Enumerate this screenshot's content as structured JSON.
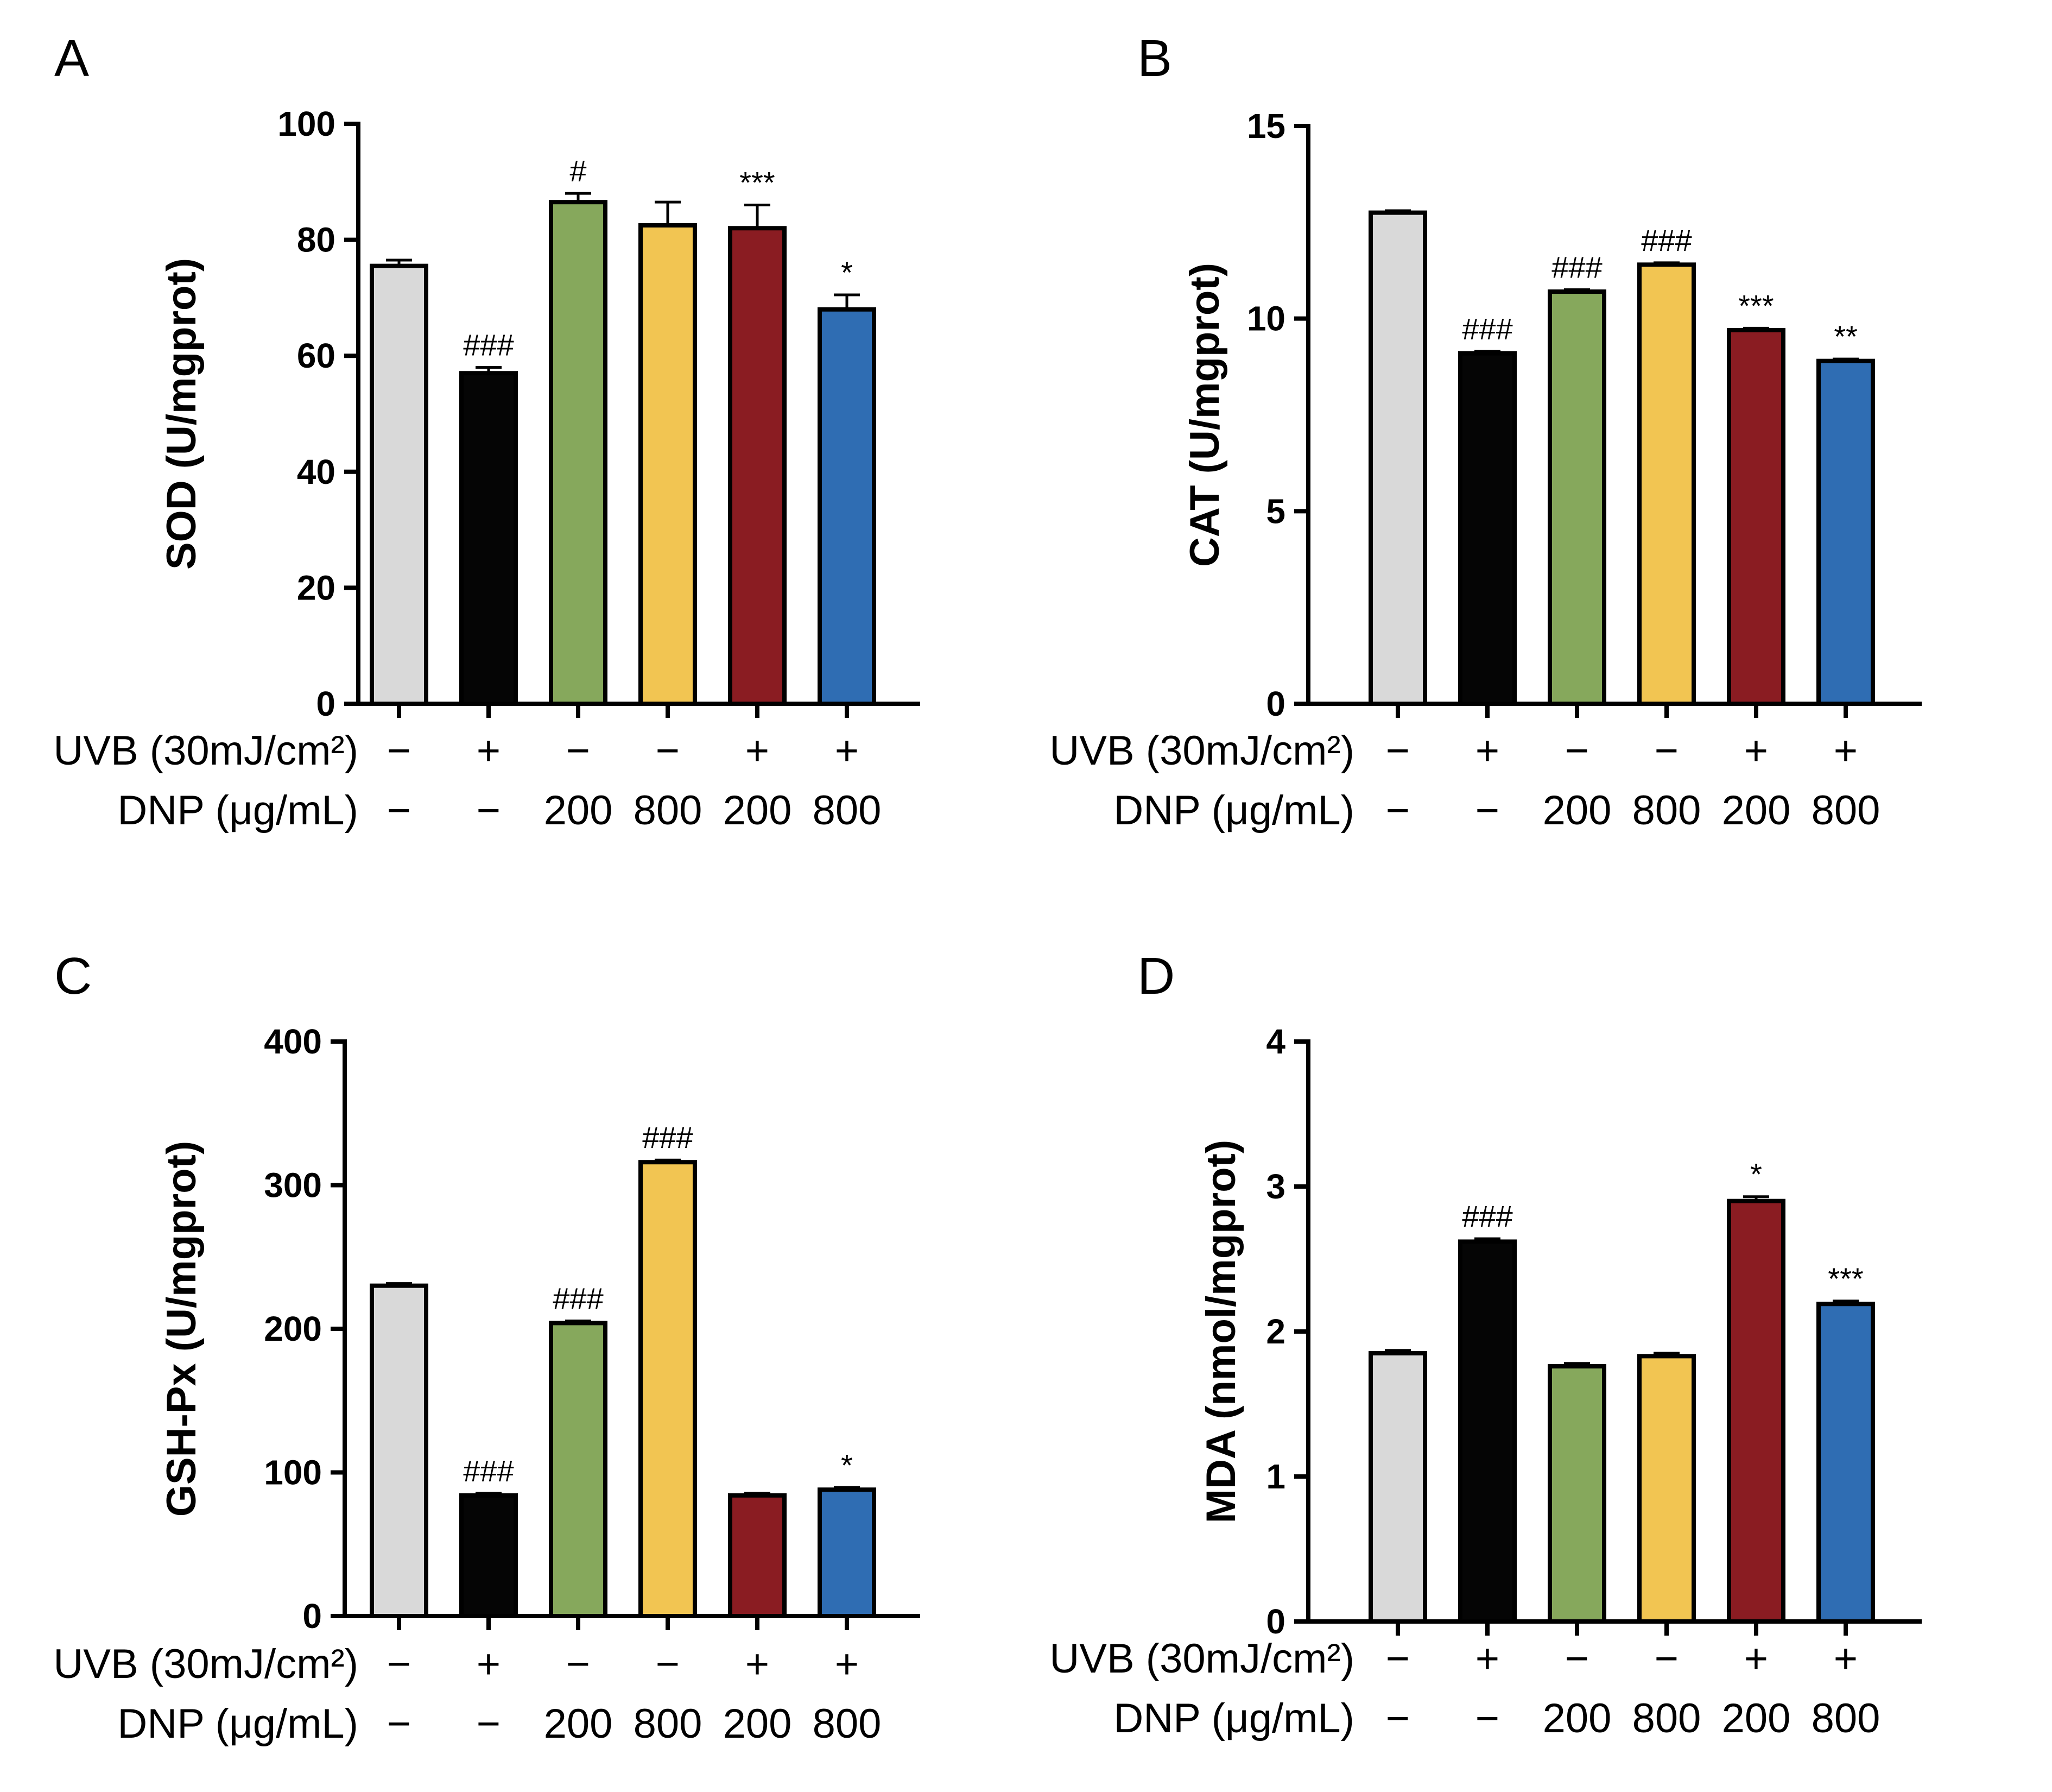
{
  "figure": {
    "row_labels": {
      "uvb": "UVB (30mJ/cm²)",
      "dnp": "DNP (μg/mL)"
    },
    "groups": [
      {
        "uvb": "−",
        "dnp": "−",
        "color": "#d9d9d9"
      },
      {
        "uvb": "+",
        "dnp": "−",
        "color": "#050505"
      },
      {
        "uvb": "−",
        "dnp": "200",
        "color": "#86a85c"
      },
      {
        "uvb": "−",
        "dnp": "800",
        "color": "#f2c552"
      },
      {
        "uvb": "+",
        "dnp": "200",
        "color": "#8a1c22"
      },
      {
        "uvb": "+",
        "dnp": "800",
        "color": "#2f6db3"
      }
    ]
  },
  "chart_data": [
    {
      "panel": "A",
      "type": "bar",
      "ylabel": "SOD (U/mgprot)",
      "ylim": [
        0,
        100
      ],
      "yticks": [
        0,
        20,
        40,
        60,
        80,
        100
      ],
      "values": [
        75.5,
        57,
        86.5,
        82.5,
        82,
        68
      ],
      "errors": [
        1,
        1,
        1.5,
        4,
        4,
        2.5
      ],
      "annotations": [
        "",
        "###",
        "#",
        "",
        "***",
        "*"
      ]
    },
    {
      "panel": "B",
      "type": "bar",
      "ylabel": "CAT (U/mgprot)",
      "ylim": [
        0,
        15
      ],
      "yticks": [
        0,
        5,
        10,
        15
      ],
      "values": [
        12.75,
        9.1,
        10.7,
        11.4,
        9.7,
        8.9
      ],
      "errors": [
        0.05,
        0.05,
        0.05,
        0.05,
        0.05,
        0.05
      ],
      "annotations": [
        "",
        "###",
        "###",
        "###",
        "***",
        "**"
      ]
    },
    {
      "panel": "C",
      "type": "bar",
      "ylabel": "GSH-Px (U/mgprot)",
      "ylim": [
        0,
        400
      ],
      "yticks": [
        0,
        100,
        200,
        300,
        400
      ],
      "values": [
        230,
        84,
        204,
        316,
        84,
        88
      ],
      "errors": [
        1.5,
        1.5,
        1.5,
        1.5,
        1.5,
        1.5
      ],
      "annotations": [
        "",
        "###",
        "###",
        "###",
        "",
        "*"
      ]
    },
    {
      "panel": "D",
      "type": "bar",
      "ylabel": "MDA (nmol/mgprot)",
      "ylim": [
        0,
        4
      ],
      "yticks": [
        0,
        1,
        2,
        3,
        4
      ],
      "values": [
        1.85,
        2.62,
        1.76,
        1.83,
        2.9,
        2.19
      ],
      "errors": [
        0.02,
        0.02,
        0.02,
        0.02,
        0.03,
        0.02
      ],
      "annotations": [
        "",
        "###",
        "",
        "",
        "*",
        "***"
      ]
    }
  ]
}
